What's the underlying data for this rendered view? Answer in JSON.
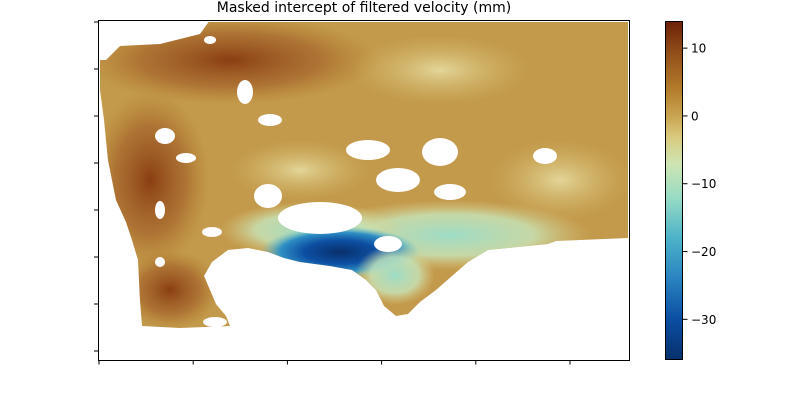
{
  "chart_data": {
    "type": "heatmap",
    "title": "Masked intercept of filtered velocity (mm)",
    "xlabel": "",
    "ylabel": "",
    "x_tick_count": 6,
    "y_tick_count": 8,
    "show_tick_labels": false,
    "masked_color": "#ffffff",
    "colorbar": {
      "min": -36,
      "max": 14,
      "ticks": [
        10,
        0,
        -10,
        -20,
        -30
      ],
      "tick_labels": [
        "10",
        "0",
        "−10",
        "−20",
        "−30"
      ],
      "colormap": [
        {
          "value": -36,
          "color": "#08306b"
        },
        {
          "value": -30,
          "color": "#0b4ea2"
        },
        {
          "value": -24,
          "color": "#2a83c0"
        },
        {
          "value": -18,
          "color": "#4db3c9"
        },
        {
          "value": -12,
          "color": "#98dcc4"
        },
        {
          "value": -7,
          "color": "#cfe5b2"
        },
        {
          "value": -3,
          "color": "#d9c97c"
        },
        {
          "value": 0,
          "color": "#c9a451"
        },
        {
          "value": 4,
          "color": "#b37c2b"
        },
        {
          "value": 9,
          "color": "#94511b"
        },
        {
          "value": 14,
          "color": "#6b2006"
        }
      ]
    }
  }
}
